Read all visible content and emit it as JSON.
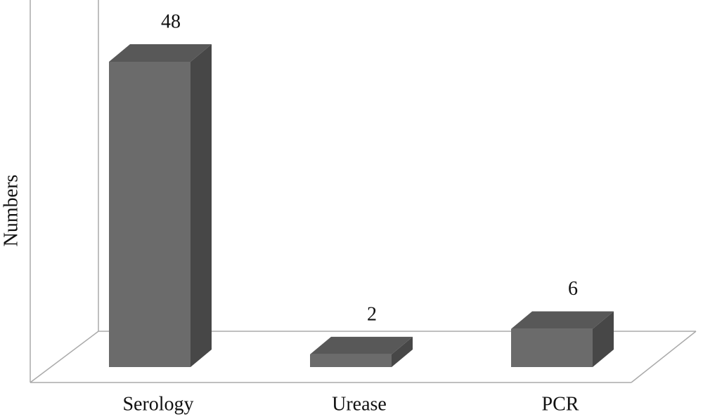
{
  "chart_data": {
    "type": "bar3d",
    "y_label": "Numbers",
    "categories": [
      "Serology",
      "Urease",
      "PCR"
    ],
    "values": [
      48,
      2,
      6
    ],
    "color": "#6b6b6b"
  }
}
